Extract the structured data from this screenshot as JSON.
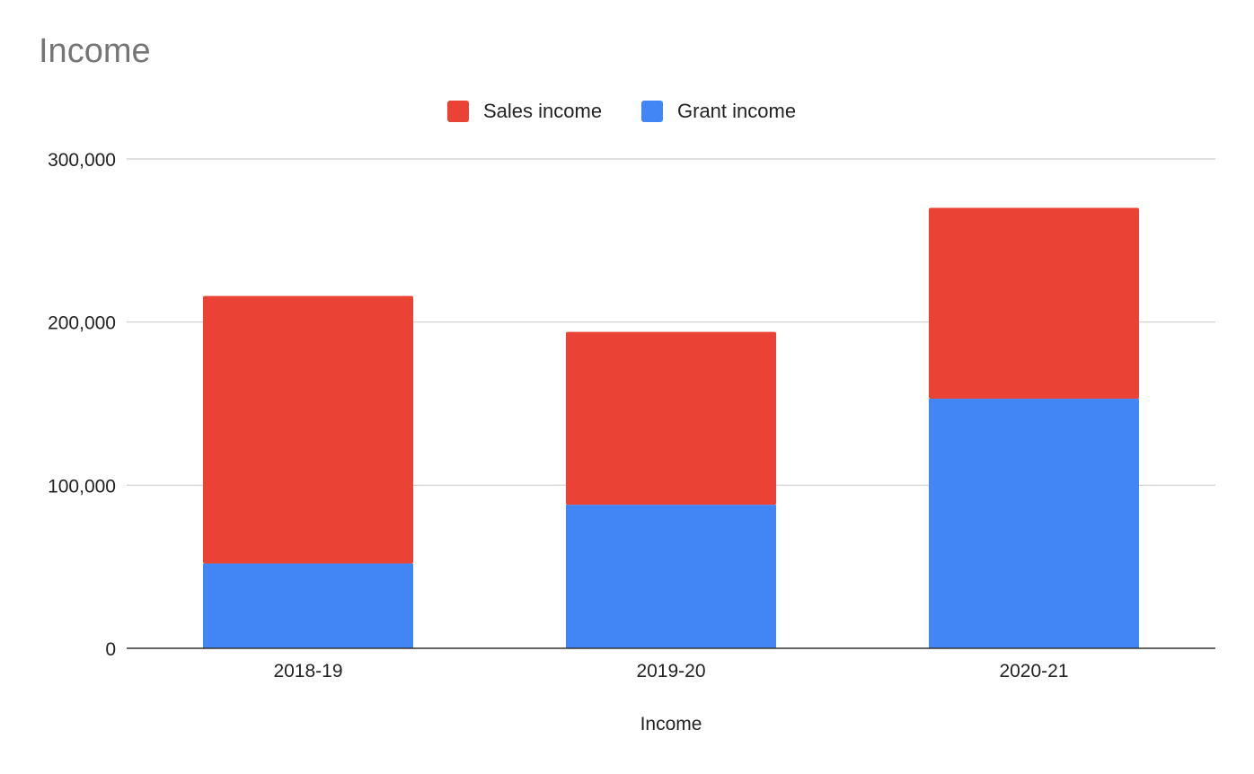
{
  "chart_data": {
    "type": "bar",
    "stacked": true,
    "title": "Income",
    "xlabel": "Income",
    "ylabel": "",
    "categories": [
      "2018-19",
      "2019-20",
      "2020-21"
    ],
    "ylim": [
      0,
      300000
    ],
    "yticks": [
      0,
      100000,
      200000,
      300000
    ],
    "ytick_labels": [
      "0",
      "100,000",
      "200,000",
      "300,000"
    ],
    "grid": true,
    "legend_position": "top-center",
    "series": [
      {
        "name": "Grant income",
        "color": "#4285f4",
        "values": [
          52000,
          88000,
          153000
        ]
      },
      {
        "name": "Sales income",
        "color": "#ea4335",
        "values": [
          164000,
          106000,
          117000
        ]
      }
    ],
    "legend_order": [
      "Sales income",
      "Grant income"
    ]
  }
}
